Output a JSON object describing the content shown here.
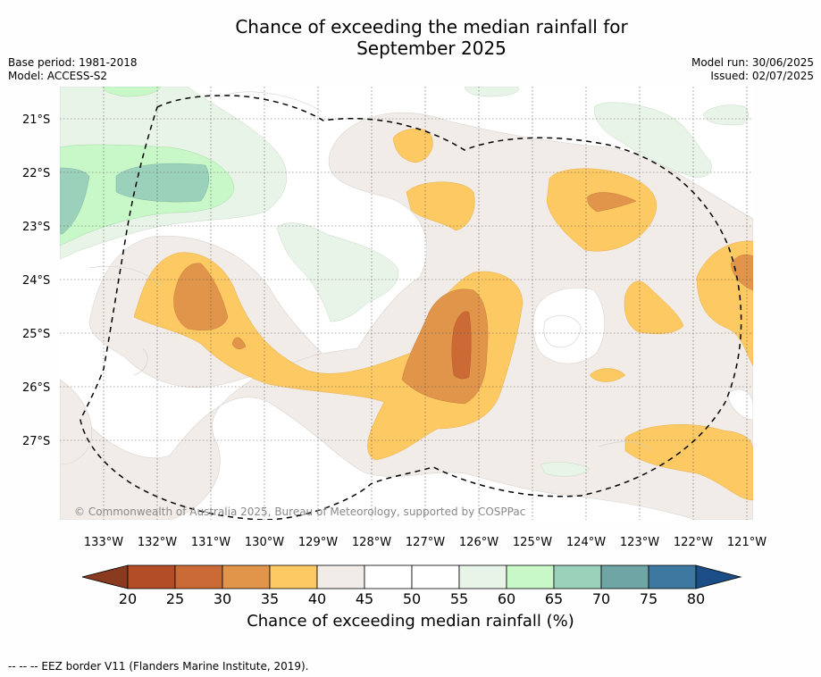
{
  "title_line1": "Chance of exceeding the median rainfall for",
  "title_line2": "September 2025",
  "base_period": "Base period: 1981-2018",
  "model": "Model: ACCESS-S2",
  "model_run": "Model run: 30/06/2025",
  "issued": "Issued: 02/07/2025",
  "copyright": "© Commonwealth of Australia 2025, Bureau of Meteorology, supported by COSPPac",
  "footer": "--  --  -- EEZ border V11 (Flanders Marine Institute, 2019).",
  "colorbar": {
    "title": "Chance of exceeding median rainfall (%)",
    "ticks": [
      "20",
      "25",
      "30",
      "35",
      "40",
      "45",
      "50",
      "55",
      "60",
      "65",
      "70",
      "75",
      "80"
    ],
    "colors": [
      "#b34d27",
      "#cc6a35",
      "#e0954a",
      "#fdc962",
      "#f1ece7",
      "#ffffff",
      "#ffffff",
      "#e9f4e8",
      "#c8f8c8",
      "#9bd1bb",
      "#6fa5a5",
      "#3d78a0"
    ],
    "under_color": "#8a3a1f",
    "over_color": "#1b4e86"
  },
  "axes": {
    "lat_labels": [
      "21°S",
      "22°S",
      "23°S",
      "24°S",
      "25°S",
      "26°S",
      "27°S"
    ],
    "lon_labels": [
      "133°W",
      "132°W",
      "131°W",
      "130°W",
      "129°W",
      "128°W",
      "127°W",
      "126°W",
      "125°W",
      "124°W",
      "123°W",
      "122°W",
      "121°W"
    ]
  },
  "legend_line": "EEZ border (dashed)"
}
